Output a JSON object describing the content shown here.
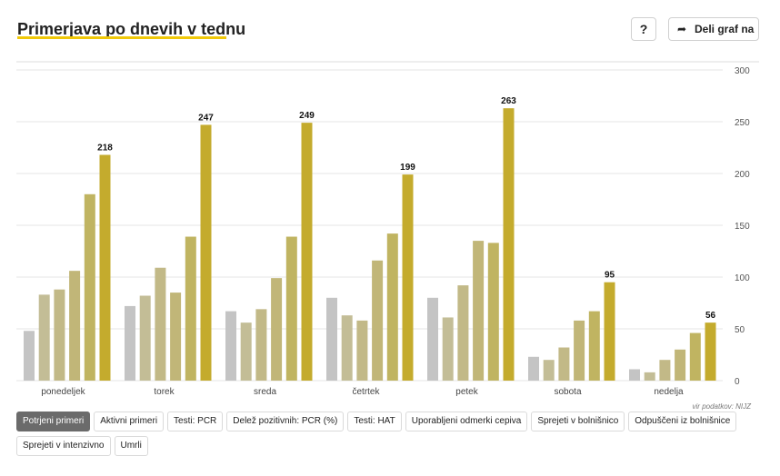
{
  "header": {
    "title": "Primerjava po dnevih v tednu",
    "help_label": "?",
    "share_label": "Deli graf na"
  },
  "source": "vir podatkov: NIJZ",
  "tabs": [
    "Potrjeni primeri",
    "Aktivni primeri",
    "Testi: PCR",
    "Delež pozitivnih: PCR (%)",
    "Testi: HAT",
    "Uporabljeni odmerki cepiva",
    "Sprejeti v bolnišnico",
    "Odpuščeni iz bolnišnice",
    "Sprejeti v intenzivno",
    "Umrli"
  ],
  "active_tab": 0,
  "colors": {
    "accent": "#f0c808",
    "bars": [
      "#c4c4c4",
      "#c3bd96",
      "#c2b987",
      "#c1b678",
      "#c0b461",
      "#bfae42",
      "#c4ab2d"
    ]
  },
  "chart_data": {
    "type": "bar",
    "categories": [
      "ponedeljek",
      "torek",
      "sreda",
      "četrtek",
      "petek",
      "sobota",
      "nedelja"
    ],
    "ylim": [
      0,
      300
    ],
    "yticks": [
      0,
      50,
      100,
      150,
      200,
      250,
      300
    ],
    "grid": true,
    "series_values": [
      [
        48,
        83,
        88,
        106,
        180,
        218
      ],
      [
        72,
        82,
        109,
        85,
        139,
        247
      ],
      [
        67,
        56,
        69,
        99,
        139,
        249
      ],
      [
        80,
        63,
        58,
        116,
        142,
        199
      ],
      [
        80,
        61,
        92,
        135,
        133,
        263
      ],
      [
        23,
        20,
        32,
        58,
        67,
        95
      ],
      [
        11,
        8,
        20,
        30,
        46,
        56
      ]
    ],
    "labeled_values": [
      218,
      247,
      249,
      199,
      263,
      95,
      56
    ]
  }
}
